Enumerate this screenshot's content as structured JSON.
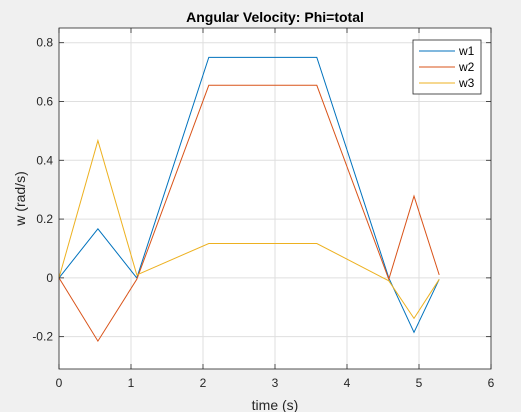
{
  "chart_data": {
    "type": "line",
    "title": "Angular Velocity: Phi=total",
    "xlabel": "time (s)",
    "ylabel": "w (rad/s)",
    "xlim": [
      0,
      6
    ],
    "ylim": [
      -0.31,
      0.85
    ],
    "xticks": [
      0,
      1,
      2,
      3,
      4,
      5,
      6
    ],
    "yticks": [
      -0.2,
      0,
      0.2,
      0.4,
      0.6,
      0.8
    ],
    "xtick_labels": [
      "0",
      "1",
      "2",
      "3",
      "4",
      "5",
      "6"
    ],
    "ytick_labels": [
      "-0.2",
      "0",
      "0.2",
      "0.4",
      "0.6",
      "0.8"
    ],
    "grid": true,
    "legend_position": "top-right",
    "series": [
      {
        "name": "w1",
        "color": "#0072BD",
        "x": [
          0,
          0.54,
          1.08,
          2.08,
          3.58,
          4.58,
          4.93,
          5.28
        ],
        "y": [
          0,
          0.167,
          0,
          0.75,
          0.75,
          0,
          -0.185,
          -0.005
        ]
      },
      {
        "name": "w2",
        "color": "#D95319",
        "x": [
          0,
          0.54,
          1.08,
          2.08,
          3.58,
          4.58,
          4.93,
          5.28
        ],
        "y": [
          0,
          -0.215,
          -0.005,
          0.655,
          0.655,
          -0.005,
          0.278,
          0.01
        ]
      },
      {
        "name": "w3",
        "color": "#EDB120",
        "x": [
          0,
          0.54,
          1.08,
          2.08,
          3.58,
          4.58,
          4.93,
          5.28
        ],
        "y": [
          0,
          0.467,
          0.01,
          0.117,
          0.117,
          -0.01,
          -0.138,
          -0.005
        ]
      }
    ]
  }
}
